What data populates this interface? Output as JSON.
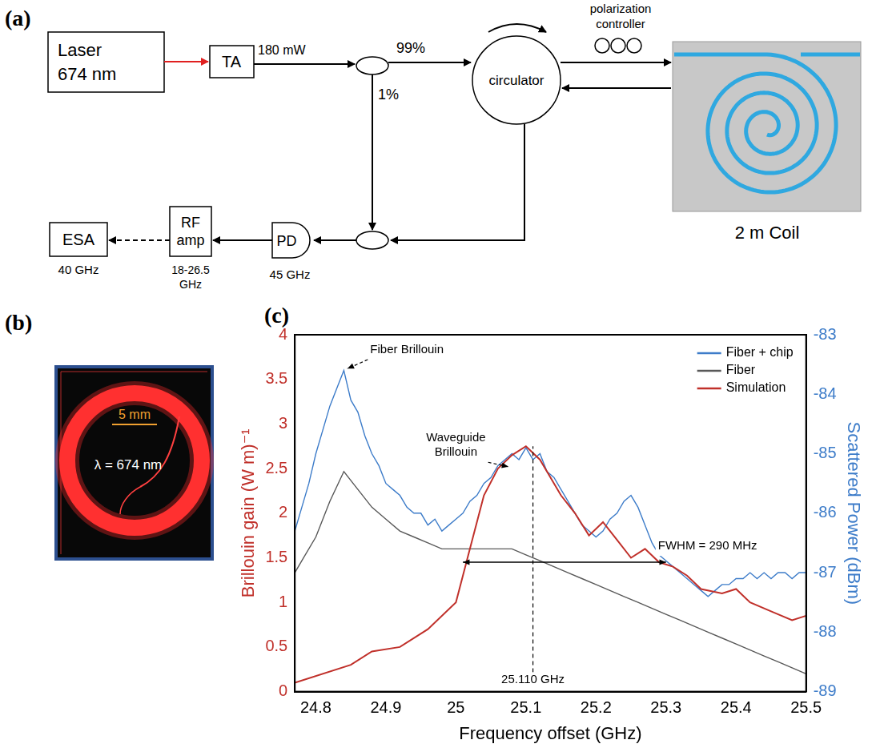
{
  "diagram": {
    "label": "(a)",
    "nodes": {
      "laser": [
        "Laser",
        "674 nm"
      ],
      "ta": "TA",
      "power": "180 mW",
      "split_high": "99%",
      "split_low": "1%",
      "circulator": "circulator",
      "polarization": [
        "polarization",
        "controller"
      ],
      "coil": "2 m Coil",
      "pd": "PD",
      "pd_bandwidth": "45 GHz",
      "rf": [
        "RF",
        "amp"
      ],
      "rf_band": [
        "18-26.5",
        "GHz"
      ],
      "esa": "ESA",
      "esa_bandwidth": "40 GHz"
    }
  },
  "photo": {
    "label": "(b)",
    "scale_bar": "5 mm",
    "wavelength": "λ = 674 nm"
  },
  "chart_data": {
    "type": "line",
    "panel_label": "(c)",
    "x_label": "Frequency offset (GHz)",
    "y_label": "Brillouin gain (W m)⁻¹",
    "y2_label": "Scattered Power (dBm)",
    "xlim": [
      24.77,
      25.5
    ],
    "xticks": [
      24.8,
      24.9,
      25,
      25.1,
      25.2,
      25.3,
      25.4,
      25.5
    ],
    "ylim": [
      0,
      4
    ],
    "yticks": [
      0,
      0.5,
      1,
      1.5,
      2,
      2.5,
      3,
      3.5,
      4
    ],
    "y2lim": [
      -89,
      -83
    ],
    "y2ticks": [
      -89,
      -88,
      -87,
      -86,
      -85,
      -84,
      -83
    ],
    "grid": false,
    "legend": "top-right",
    "series": [
      {
        "name": "Fiber + chip",
        "color": "#3d7cc9",
        "axis": "y2",
        "x": [
          24.77,
          24.78,
          24.79,
          24.8,
          24.81,
          24.82,
          24.83,
          24.84,
          24.85,
          24.86,
          24.87,
          24.88,
          24.89,
          24.9,
          24.91,
          24.92,
          24.93,
          24.94,
          24.95,
          24.96,
          24.97,
          24.98,
          24.99,
          25.0,
          25.01,
          25.02,
          25.03,
          25.04,
          25.05,
          25.06,
          25.07,
          25.08,
          25.09,
          25.1,
          25.11,
          25.12,
          25.13,
          25.14,
          25.15,
          25.16,
          25.17,
          25.18,
          25.19,
          25.2,
          25.21,
          25.22,
          25.23,
          25.24,
          25.25,
          25.26,
          25.27,
          25.28,
          25.29,
          25.3,
          25.31,
          25.32,
          25.33,
          25.34,
          25.35,
          25.36,
          25.37,
          25.38,
          25.39,
          25.4,
          25.41,
          25.42,
          25.43,
          25.44,
          25.45,
          25.46,
          25.47,
          25.48,
          25.49,
          25.5
        ],
        "values": [
          -86.3,
          -85.9,
          -85.5,
          -85.0,
          -84.6,
          -84.2,
          -83.9,
          -83.6,
          -84.1,
          -84.3,
          -84.7,
          -85.0,
          -85.2,
          -85.5,
          -85.6,
          -85.7,
          -85.9,
          -86.0,
          -86.0,
          -86.2,
          -86.1,
          -86.3,
          -86.2,
          -86.1,
          -86.0,
          -85.8,
          -85.7,
          -85.5,
          -85.4,
          -85.2,
          -85.1,
          -85.0,
          -85.1,
          -84.9,
          -85.1,
          -85.0,
          -85.3,
          -85.4,
          -85.6,
          -85.8,
          -86.0,
          -86.2,
          -86.3,
          -86.4,
          -86.3,
          -86.1,
          -86.0,
          -85.8,
          -85.7,
          -85.9,
          -86.2,
          -86.5,
          -86.7,
          -86.8,
          -86.9,
          -87.0,
          -87.1,
          -87.2,
          -87.3,
          -87.4,
          -87.3,
          -87.2,
          -87.2,
          -87.1,
          -87.1,
          -87.0,
          -87.1,
          -87.0,
          -87.1,
          -87.0,
          -87.0,
          -87.1,
          -87.0,
          -87.0
        ]
      },
      {
        "name": "Fiber",
        "color": "#595959",
        "axis": "y2",
        "x": [
          24.77,
          24.78,
          24.8,
          24.82,
          24.84,
          24.86,
          24.88,
          24.9,
          24.92,
          24.94,
          24.96,
          24.98,
          25.0,
          25.02,
          25.04,
          25.06,
          25.08,
          25.1,
          25.12,
          25.14,
          25.16,
          25.18,
          25.2,
          25.22,
          25.24,
          25.26,
          25.28,
          25.3,
          25.32,
          25.34,
          25.36,
          25.38,
          25.4,
          25.42,
          25.44,
          25.46,
          25.48,
          25.5
        ],
        "values": [
          -87.0,
          -86.8,
          -86.4,
          -85.8,
          -85.3,
          -85.6,
          -85.9,
          -86.1,
          -86.3,
          -86.4,
          -86.5,
          -86.6,
          -86.6,
          -86.6,
          -86.6,
          -86.6,
          -86.6,
          -86.7,
          -86.8,
          -86.9,
          -87.0,
          -87.1,
          -87.2,
          -87.3,
          -87.4,
          -87.5,
          -87.6,
          -87.7,
          -87.8,
          -87.9,
          -88.0,
          -88.1,
          -88.2,
          -88.3,
          -88.4,
          -88.5,
          -88.6,
          -88.7
        ]
      },
      {
        "name": "Simulation",
        "color": "#c0302a",
        "axis": "y",
        "x": [
          24.77,
          24.85,
          24.88,
          24.92,
          24.96,
          25.0,
          25.02,
          25.04,
          25.06,
          25.08,
          25.1,
          25.12,
          25.15,
          25.17,
          25.19,
          25.21,
          25.23,
          25.25,
          25.27,
          25.29,
          25.31,
          25.33,
          25.35,
          25.38,
          25.4,
          25.42,
          25.45,
          25.48,
          25.5
        ],
        "values": [
          0.1,
          0.3,
          0.45,
          0.5,
          0.7,
          1.0,
          1.6,
          2.2,
          2.5,
          2.65,
          2.75,
          2.6,
          2.2,
          2.0,
          1.75,
          1.9,
          1.7,
          1.5,
          1.6,
          1.45,
          1.4,
          1.3,
          1.15,
          1.1,
          1.15,
          1.0,
          0.9,
          0.8,
          0.85
        ]
      }
    ],
    "annotations": [
      {
        "text": "Fiber Brillouin",
        "x": 24.93,
        "y": 3.82,
        "point": [
          24.845,
          3.62
        ]
      },
      {
        "text": "Waveguide Brillouin",
        "x": 25.0,
        "y": 2.75,
        "point": [
          25.075,
          2.52
        ]
      }
    ],
    "fwhm": {
      "label": "FWHM = 290 MHz",
      "from": 25.01,
      "to": 25.3,
      "y": 1.45
    },
    "peak": {
      "label": "25.110 GHz",
      "x": 25.11,
      "y": 2.75
    }
  }
}
